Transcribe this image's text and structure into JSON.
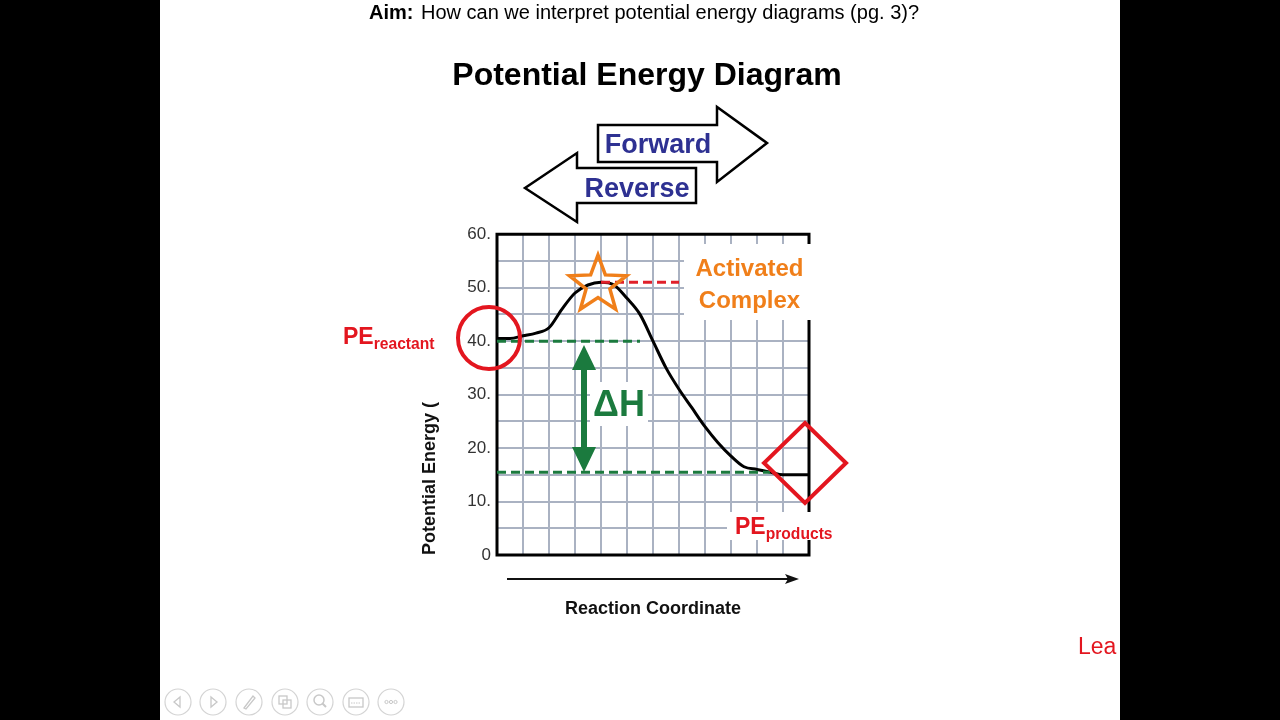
{
  "chart_data": {
    "type": "line",
    "title": "Potential Energy Diagram",
    "xlabel": "Reaction Coordinate",
    "ylabel": "Potential Energy (",
    "categories": [
      null,
      null,
      null,
      null,
      null,
      null,
      null,
      null,
      null,
      null,
      null,
      null,
      null,
      null,
      null,
      null,
      null,
      null,
      null,
      null,
      null,
      null,
      null,
      null,
      null
    ],
    "series": [
      {
        "color": "#000000",
        "values": [
          40.5,
          40.5,
          41,
          41.5,
          42.5,
          46,
          49,
          50.5,
          51,
          50.5,
          48,
          45,
          40,
          35,
          31,
          27.5,
          24,
          21,
          18.5,
          16.5,
          16,
          15.5,
          15,
          15,
          15
        ]
      },
      {
        "color": "#1b7a3e",
        "line_style": "dashed",
        "values": [
          40,
          40,
          40,
          40,
          40,
          40,
          40,
          40,
          40,
          40,
          40,
          40,
          null,
          null,
          null,
          null,
          null,
          null,
          null,
          null,
          null,
          null,
          null,
          null,
          null
        ]
      },
      {
        "color": "#1b7a3e",
        "line_style": "dashed",
        "values": [
          15.5,
          15.5,
          15.5,
          15.5,
          15.5,
          15.5,
          15.5,
          15.5,
          15.5,
          15.5,
          15.5,
          15.5,
          15.5,
          15.5,
          15.5,
          15.5,
          15.5,
          15.5,
          15.5,
          15.5,
          15.5,
          15.5,
          null,
          null,
          null
        ]
      },
      {
        "color": "#e0202a",
        "line_style": "dashed",
        "values": [
          null,
          null,
          null,
          null,
          null,
          null,
          null,
          null,
          51,
          51,
          51,
          51,
          51,
          51,
          51,
          null,
          null,
          null,
          null,
          null,
          null,
          null,
          null,
          null,
          null
        ]
      }
    ],
    "ylim": [
      0,
      60
    ],
    "yticks": [
      0,
      {
        "value": 5,
        "label": null
      },
      {
        "value": 10,
        "label": "10."
      },
      {
        "value": 15,
        "label": null
      },
      {
        "value": 20,
        "label": "20."
      },
      {
        "value": 25,
        "label": null
      },
      {
        "value": 30,
        "label": "30."
      },
      {
        "value": 35,
        "label": null
      },
      {
        "value": 40,
        "label": "40."
      },
      {
        "value": 45,
        "label": null
      },
      {
        "value": 50,
        "label": "50."
      },
      {
        "value": 55,
        "label": null
      },
      {
        "value": 60,
        "label": "60."
      }
    ],
    "grid": true,
    "marker": "none",
    "tick_labels": "y",
    "annotations": [
      "Aim:",
      "How can we interpret potential energy diagrams (pg. 3)?",
      "Forward",
      "Reverse",
      "Activated Complex",
      "PE$_{reactant}$",
      "ΔH",
      "PE$_{products}$",
      "Lea"
    ]
  }
}
